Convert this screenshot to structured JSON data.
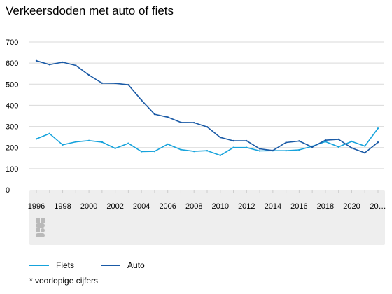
{
  "chart_data": {
    "type": "line",
    "title": "Verkeersdoden met auto of fiets",
    "xlabel": "",
    "ylabel": "",
    "ylim": [
      0,
      700
    ],
    "yticks": [
      "0",
      "100",
      "200",
      "300",
      "400",
      "500",
      "600",
      "700"
    ],
    "x": [
      1996,
      1997,
      1998,
      1999,
      2000,
      2001,
      2002,
      2003,
      2004,
      2005,
      2006,
      2007,
      2008,
      2009,
      2010,
      2011,
      2012,
      2013,
      2014,
      2015,
      2016,
      2017,
      2018,
      2019,
      2020,
      2021,
      2022
    ],
    "xtick_labels": [
      "1996",
      "1998",
      "2000",
      "2002",
      "2004",
      "2006",
      "2008",
      "2010",
      "2012",
      "2014",
      "2016",
      "2018",
      "2020",
      "20…"
    ],
    "grid": true,
    "legend_position": "bottom-left",
    "series": [
      {
        "name": "Fiets",
        "color": "#16a3dc",
        "values": [
          241,
          266,
          213,
          227,
          233,
          226,
          196,
          220,
          181,
          182,
          216,
          190,
          182,
          185,
          163,
          200,
          200,
          184,
          185,
          185,
          189,
          206,
          228,
          203,
          229,
          207,
          291
        ]
      },
      {
        "name": "Auto",
        "color": "#1a5aa6",
        "values": [
          611,
          593,
          604,
          589,
          543,
          505,
          504,
          497,
          424,
          358,
          344,
          319,
          318,
          298,
          248,
          232,
          232,
          194,
          186,
          224,
          231,
          202,
          235,
          239,
          198,
          175,
          225
        ]
      }
    ],
    "footnote": "* voorlopige cijfers"
  }
}
